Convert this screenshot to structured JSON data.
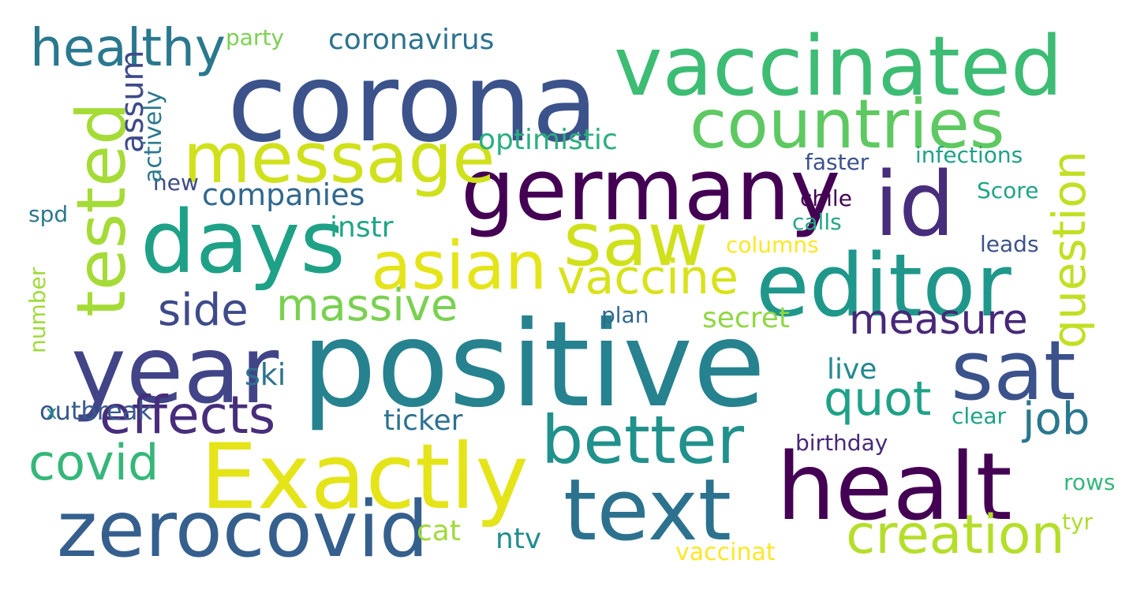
{
  "words": [
    {
      "text": "corona",
      "color": "#3b528b"
    },
    {
      "text": "vaccinated",
      "color": "#3dbc74"
    },
    {
      "text": "positive",
      "color": "#26828e"
    },
    {
      "text": "germany",
      "color": "#440154"
    },
    {
      "text": "year",
      "color": "#414487"
    },
    {
      "text": "Exactly",
      "color": "#e5e419"
    },
    {
      "text": "healt",
      "color": "#440154"
    },
    {
      "text": "countries",
      "color": "#5ec962"
    },
    {
      "text": "message",
      "color": "#d0e11c"
    },
    {
      "text": "days",
      "color": "#1fa187"
    },
    {
      "text": "saw",
      "color": "#d0e11c"
    },
    {
      "text": "id",
      "color": "#472d7b"
    },
    {
      "text": "editor",
      "color": "#1f988b"
    },
    {
      "text": "sat",
      "color": "#3b528b"
    },
    {
      "text": "asian",
      "color": "#e5e419"
    },
    {
      "text": "vaccine",
      "color": "#d8e219"
    },
    {
      "text": "zerocovid",
      "color": "#355f8d"
    },
    {
      "text": "text",
      "color": "#2c728e"
    },
    {
      "text": "better",
      "color": "#21918c"
    },
    {
      "text": "creation",
      "color": "#b5de2b"
    },
    {
      "text": "effects",
      "color": "#472d7b"
    },
    {
      "text": "covid",
      "color": "#35b779"
    },
    {
      "text": "massive",
      "color": "#7ad151"
    },
    {
      "text": "side",
      "color": "#3e4a89"
    },
    {
      "text": "measure",
      "color": "#482878"
    },
    {
      "text": "quot",
      "color": "#1fa187"
    },
    {
      "text": "job",
      "color": "#2a788e"
    },
    {
      "text": "healthy",
      "color": "#2a788e"
    },
    {
      "text": "companies",
      "color": "#31688e"
    },
    {
      "text": "optimistic",
      "color": "#29af7f"
    },
    {
      "text": "coronavirus",
      "color": "#2c728e"
    },
    {
      "text": "outbreak",
      "color": "#38598c"
    },
    {
      "text": "ticker",
      "color": "#2c728e"
    },
    {
      "text": "ski",
      "color": "#2c728e"
    },
    {
      "text": "instr",
      "color": "#20a486"
    },
    {
      "text": "secret",
      "color": "#90d743"
    },
    {
      "text": "live",
      "color": "#23898e"
    },
    {
      "text": "cat",
      "color": "#a0da39"
    },
    {
      "text": "ntv",
      "color": "#228c8d"
    },
    {
      "text": "faster",
      "color": "#3b528b"
    },
    {
      "text": "infections",
      "color": "#1fa187"
    },
    {
      "text": "chile",
      "color": "#440154"
    },
    {
      "text": "calls",
      "color": "#22a884"
    },
    {
      "text": "Score",
      "color": "#20a486"
    },
    {
      "text": "columns",
      "color": "#fde725"
    },
    {
      "text": "leads",
      "color": "#3b528b"
    },
    {
      "text": "plan",
      "color": "#31688e"
    },
    {
      "text": "clear",
      "color": "#1fa187"
    },
    {
      "text": "birthday",
      "color": "#482878"
    },
    {
      "text": "rows",
      "color": "#35b779"
    },
    {
      "text": "tyr",
      "color": "#addc30"
    },
    {
      "text": "vaccinat",
      "color": "#fde725"
    },
    {
      "text": "party",
      "color": "#7ad151"
    },
    {
      "text": "new",
      "color": "#3e4a89"
    },
    {
      "text": "spd",
      "color": "#2a788e"
    },
    {
      "text": "x",
      "color": "#23898e"
    },
    {
      "text": "tested",
      "color": "#a5db36"
    },
    {
      "text": "question",
      "color": "#c2df23"
    },
    {
      "text": "assum",
      "color": "#3e4a89"
    },
    {
      "text": "actively",
      "color": "#2a788e"
    },
    {
      "text": "number",
      "color": "#a0da39"
    }
  ]
}
